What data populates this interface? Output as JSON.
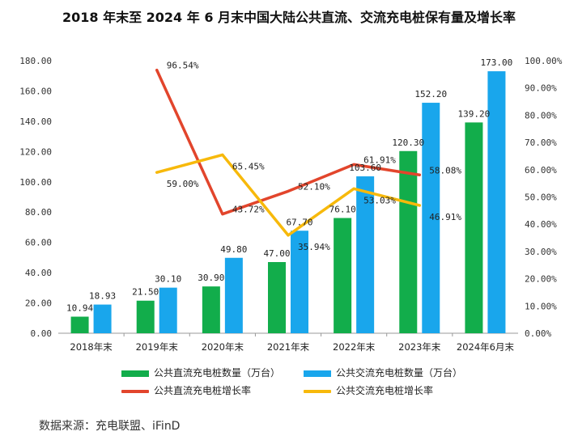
{
  "title": "2018 年末至 2024 年 6 月末中国大陆公共直流、交流充电桩保有量及增长率",
  "source": "数据来源：充电联盟、iFinD",
  "colors": {
    "dc_bar": "#12ad4b",
    "ac_bar": "#19a6ec",
    "dc_line": "#e2452c",
    "ac_line": "#f7b90b",
    "axis": "#999999"
  },
  "legend": {
    "dc_bar": "公共直流充电桩数量（万台）",
    "ac_bar": "公共交流充电桩数量（万台）",
    "dc_line": "公共直流充电桩增长率",
    "ac_line": "公共交流充电桩增长率"
  },
  "chart_data": {
    "type": "bar",
    "categories": [
      "2018年末",
      "2019年末",
      "2020年末",
      "2021年末",
      "2022年末",
      "2023年末",
      "2024年6月末"
    ],
    "y_ticks": [
      "0.00",
      "20.00",
      "40.00",
      "60.00",
      "80.00",
      "100.00",
      "120.00",
      "140.00",
      "160.00",
      "180.00"
    ],
    "y2_ticks": [
      "0.00%",
      "10.00%",
      "20.00%",
      "30.00%",
      "40.00%",
      "50.00%",
      "60.00%",
      "70.00%",
      "80.00%",
      "90.00%",
      "100.00%"
    ],
    "ylim": [
      0,
      180
    ],
    "y2lim": [
      0,
      100
    ],
    "bar_series": [
      {
        "name": "公共直流充电桩数量（万台）",
        "values": [
          10.94,
          21.5,
          30.9,
          47.0,
          76.1,
          120.3,
          139.2
        ],
        "labels": [
          "10.94",
          "21.50",
          "30.90",
          "47.00",
          "76.10",
          "120.30",
          "139.20"
        ]
      },
      {
        "name": "公共交流充电桩数量（万台）",
        "values": [
          18.93,
          30.1,
          49.8,
          67.7,
          103.6,
          152.2,
          173.0
        ],
        "labels": [
          "18.93",
          "30.10",
          "49.80",
          "67.70",
          "103.60",
          "152.20",
          "173.00"
        ]
      }
    ],
    "line_series": [
      {
        "name": "公共直流充电桩增长率",
        "values": [
          null,
          96.54,
          43.72,
          52.1,
          61.91,
          58.08,
          null
        ],
        "labels": [
          null,
          "96.54%",
          "43.72%",
          "52.10%",
          "61.91%",
          "58.08%",
          null
        ]
      },
      {
        "name": "公共交流充电桩增长率",
        "values": [
          null,
          59.0,
          65.45,
          35.94,
          53.03,
          46.91,
          null
        ],
        "labels": [
          null,
          "59.00%",
          "65.45%",
          "35.94%",
          "53.03%",
          "46.91%",
          null
        ]
      }
    ],
    "legend_position": "bottom"
  }
}
